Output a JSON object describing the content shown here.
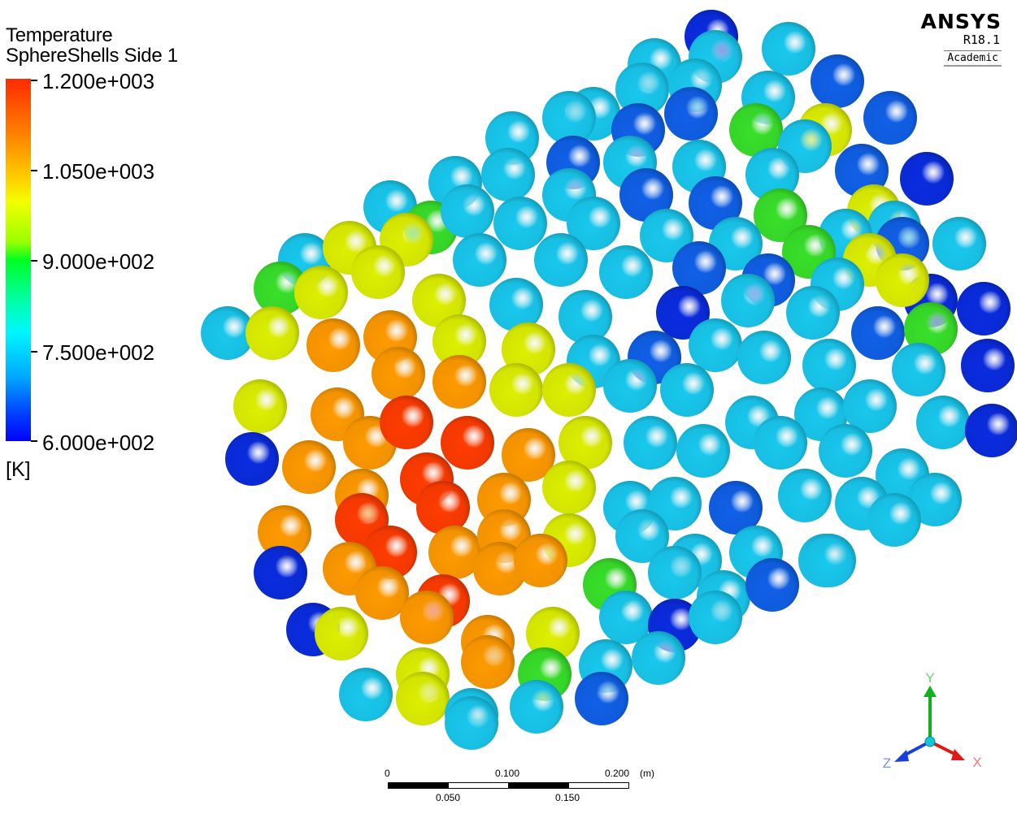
{
  "app": {
    "name": "ANSYS",
    "version": "R18.1",
    "edition": "Academic"
  },
  "legend": {
    "title": "Temperature",
    "subtitle": "SphereShells Side 1",
    "unit": "[K]",
    "ticks": [
      "1.200e+003",
      "1.050e+003",
      "9.000e+002",
      "7.500e+002",
      "6.000e+002"
    ],
    "range": [
      600,
      1200
    ]
  },
  "scale_bar": {
    "top_labels": [
      "0",
      "0.100",
      "0.200"
    ],
    "bottom_labels": [
      "0.050",
      "0.150"
    ],
    "unit": "(m)"
  },
  "axes": {
    "x": "X",
    "y": "Y",
    "z": "Z"
  },
  "colors": {
    "hot": "#ff3c00",
    "warm": "#ff9a00",
    "mid": "#ddf000",
    "green": "#38e02a",
    "cool": "#19c8ee",
    "cold": "#1060e8",
    "coldest": "#0a2ce0",
    "axis_x": "#e01818",
    "axis_y": "#10b020",
    "axis_z": "#1840e0"
  }
}
